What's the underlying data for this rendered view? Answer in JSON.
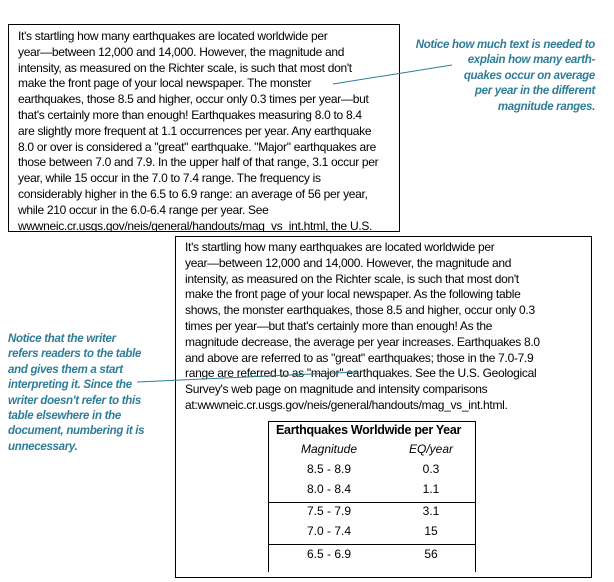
{
  "document_back": {
    "lines": [
      "It's startling how many earthquakes are located worldwide per",
      "year—between 12,000 and 14,000. However, the magnitude and",
      "intensity, as measured on the Richter scale, is such that most don't",
      "make the front page of your local newspaper. As the following table",
      "shows, the monster earthquakes, those 8.5 and higher, occur only 0.3",
      "times per year—but that's certainly more than enough! As the",
      "magnitude decrease, the average per year increases. Earthquakes 8.0",
      "and above are referred to as \"great\" earthquakes; those in the 7.0-7.9",
      "range are referred to as \"major\" earthquakes. See the U.S. Geological",
      "Survey's web page on magnitude and intensity comparisons",
      "at:wwwneic.cr.usgs.gov/neis/general/handouts/mag_vs_int.html."
    ],
    "table": {
      "title": "Earthquakes Worldwide per Year",
      "headers": [
        "Magnitude",
        "EQ/year"
      ],
      "rows": [
        [
          "8.5 - 8.9",
          "0.3"
        ],
        [
          "8.0 - 8.4",
          "1.1"
        ],
        [
          "7.5 - 7.9",
          "3.1"
        ],
        [
          "7.0 - 7.4",
          "15"
        ],
        [
          "6.5 - 6.9",
          "56"
        ]
      ]
    }
  },
  "document_front": {
    "lines": [
      "It's startling how many earthquakes are located worldwide per",
      "year—between 12,000 and 14,000. However, the magnitude and",
      "intensity, as measured on the Richter scale, is such that most don't",
      "make the front page of your local newspaper. The monster",
      "earthquakes, those 8.5 and higher, occur only 0.3 times per year—but",
      "that's certainly more than enough! Earthquakes measuring 8.0 to 8.4",
      "are slightly more frequent at 1.1 occurrences per year. Any earthquake",
      "8.0 or over is considered a \"great\" earthquake. \"Major\" earthquakes are",
      "those between 7.0 and 7.9. In the upper half of that range, 3.1 occur per",
      "year, while 15 occur in the 7.0 to 7.4 range. The frequency is",
      "considerably higher in the 6.5 to 6.9 range: an average of 56 per year,",
      "while 210 occur in the 6.0-6.4 range per year. See",
      "wwwneic.cr.usgs.gov/neis/general/handouts/mag_vs_int.html, the U.S."
    ]
  },
  "annotations": {
    "top": [
      "Notice how much text is needed to",
      "explain how many earth-",
      "quakes occur on average",
      "per year in the different",
      "magnitude ranges."
    ],
    "left": [
      "Notice that the writer",
      "refers readers to the table",
      "and gives them a start",
      "interpreting it. Since the",
      "writer doesn't refer to this",
      "table elsewhere in the",
      "document, numbering it is",
      "unnecessary."
    ]
  },
  "colors": {
    "annotation": "#2e7d99",
    "border": "#000000"
  }
}
